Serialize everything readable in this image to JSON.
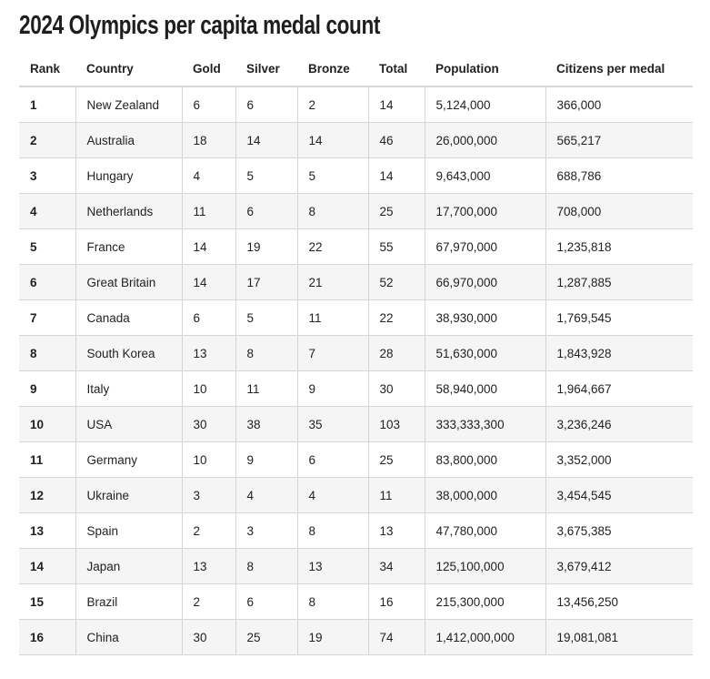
{
  "title": "2024 Olympics per capita medal count",
  "columns": [
    "Rank",
    "Country",
    "Gold",
    "Silver",
    "Bronze",
    "Total",
    "Population",
    "Citizens per medal"
  ],
  "rows": [
    [
      "1",
      "New Zealand",
      "6",
      "6",
      "2",
      "14",
      "5,124,000",
      "366,000"
    ],
    [
      "2",
      "Australia",
      "18",
      "14",
      "14",
      "46",
      "26,000,000",
      "565,217"
    ],
    [
      "3",
      "Hungary",
      "4",
      "5",
      "5",
      "14",
      "9,643,000",
      "688,786"
    ],
    [
      "4",
      "Netherlands",
      "11",
      "6",
      "8",
      "25",
      "17,700,000",
      "708,000"
    ],
    [
      "5",
      "France",
      "14",
      "19",
      "22",
      "55",
      "67,970,000",
      "1,235,818"
    ],
    [
      "6",
      "Great Britain",
      "14",
      "17",
      "21",
      "52",
      "66,970,000",
      "1,287,885"
    ],
    [
      "7",
      "Canada",
      "6",
      "5",
      "11",
      "22",
      "38,930,000",
      "1,769,545"
    ],
    [
      "8",
      "South Korea",
      "13",
      "8",
      "7",
      "28",
      "51,630,000",
      "1,843,928"
    ],
    [
      "9",
      "Italy",
      "10",
      "11",
      "9",
      "30",
      "58,940,000",
      "1,964,667"
    ],
    [
      "10",
      "USA",
      "30",
      "38",
      "35",
      "103",
      "333,333,300",
      "3,236,246"
    ],
    [
      "11",
      "Germany",
      "10",
      "9",
      "6",
      "25",
      "83,800,000",
      "3,352,000"
    ],
    [
      "12",
      "Ukraine",
      "3",
      "4",
      "4",
      "11",
      "38,000,000",
      "3,454,545"
    ],
    [
      "13",
      "Spain",
      "2",
      "3",
      "8",
      "13",
      "47,780,000",
      "3,675,385"
    ],
    [
      "14",
      "Japan",
      "13",
      "8",
      "13",
      "34",
      "125,100,000",
      "3,679,412"
    ],
    [
      "15",
      "Brazil",
      "2",
      "6",
      "8",
      "16",
      "215,300,000",
      "13,456,250"
    ],
    [
      "16",
      "China",
      "30",
      "25",
      "19",
      "74",
      "1,412,000,000",
      "19,081,081"
    ]
  ]
}
